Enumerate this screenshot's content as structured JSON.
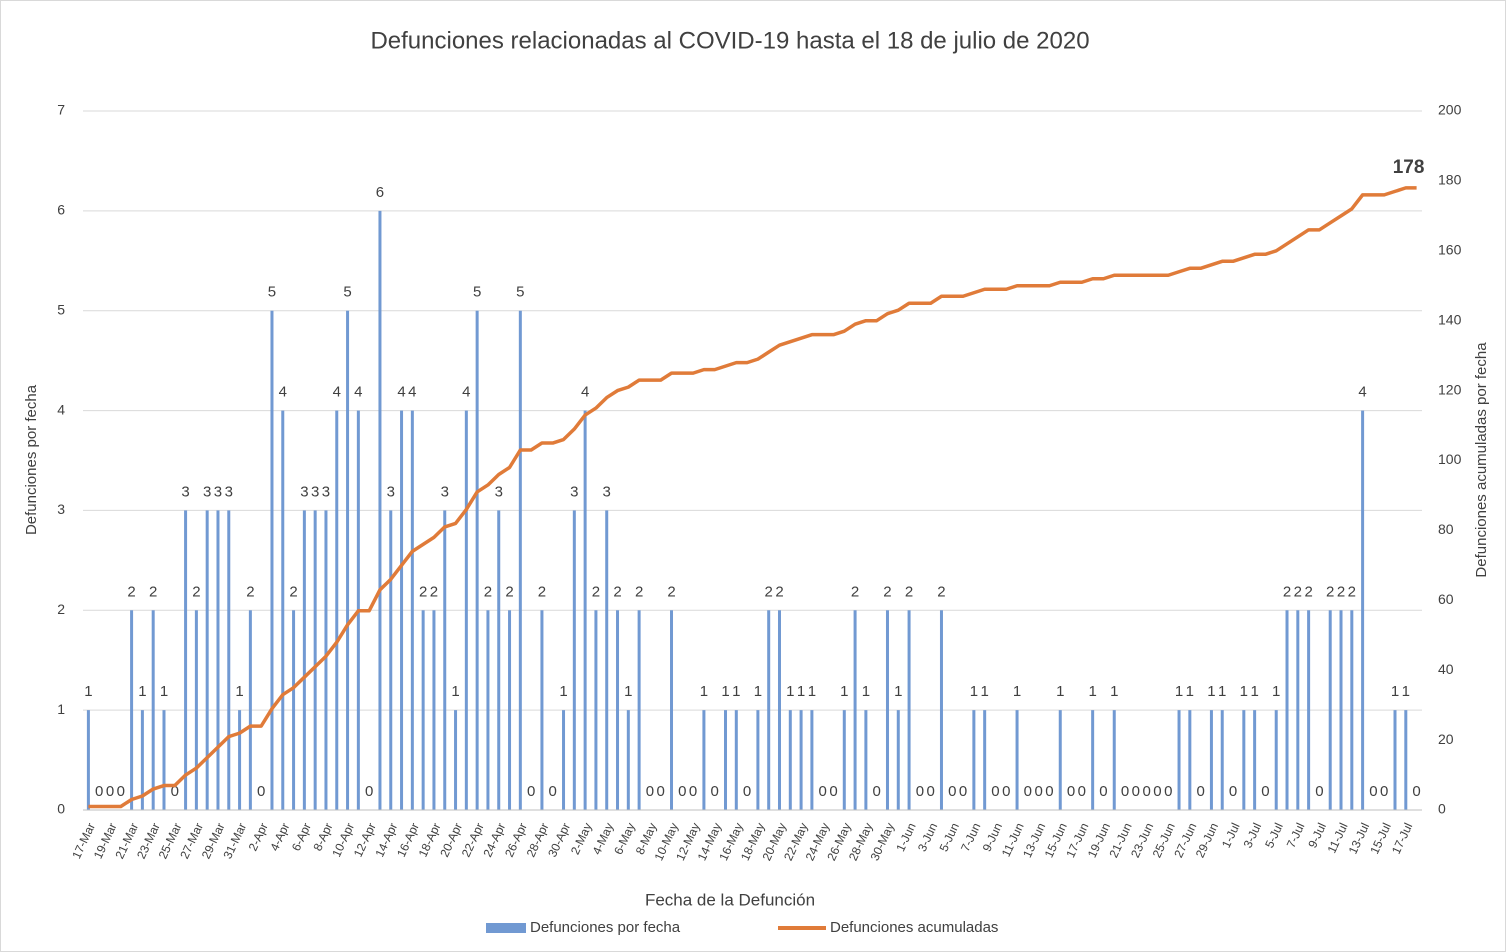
{
  "chart_data": {
    "type": "bar-line",
    "title": "Defunciones relacionadas al COVID-19 hasta el 18 de julio de 2020",
    "xlabel": "Fecha de la Defunción",
    "ylabel": "Defunciones por fecha",
    "y2label": "Defunciones acumuladas por fecha",
    "categories": [
      "17-Mar",
      null,
      "19-Mar",
      null,
      "21-Mar",
      null,
      "23-Mar",
      null,
      "25-Mar",
      null,
      "27-Mar",
      null,
      "29-Mar",
      null,
      "31-Mar",
      null,
      "2-Apr",
      null,
      "4-Apr",
      null,
      "6-Apr",
      null,
      "8-Apr",
      null,
      "10-Apr",
      null,
      "12-Apr",
      null,
      "14-Apr",
      null,
      "16-Apr",
      null,
      "18-Apr",
      null,
      "20-Apr",
      null,
      "22-Apr",
      null,
      "24-Apr",
      null,
      "26-Apr",
      null,
      "28-Apr",
      null,
      "30-Apr",
      null,
      "2-May",
      null,
      "4-May",
      null,
      "6-May",
      null,
      "8-May",
      null,
      "10-May",
      null,
      "12-May",
      null,
      "14-May",
      null,
      "16-May",
      null,
      "18-May",
      null,
      "20-May",
      null,
      "22-May",
      null,
      "24-May",
      null,
      "26-May",
      null,
      "28-May",
      null,
      "30-May",
      null,
      "1-Jun",
      null,
      "3-Jun",
      null,
      "5-Jun",
      null,
      "7-Jun",
      null,
      "9-Jun",
      null,
      "11-Jun",
      null,
      "13-Jun",
      null,
      "15-Jun",
      null,
      "17-Jun",
      null,
      "19-Jun",
      null,
      "21-Jun",
      null,
      "23-Jun",
      null,
      "25-Jun",
      null,
      "27-Jun",
      null,
      "29-Jun",
      null,
      "1-Jul",
      null,
      "3-Jul",
      null,
      "5-Jul",
      null,
      "7-Jul",
      null,
      "9-Jul",
      null,
      "11-Jul",
      null,
      "13-Jul",
      null,
      "15-Jul",
      null,
      "17-Jul",
      null
    ],
    "series": [
      {
        "name": "Defunciones por fecha",
        "color": "#7199d2",
        "type": "bar",
        "axis": "y",
        "values": [
          1,
          0,
          0,
          0,
          2,
          1,
          2,
          1,
          0,
          3,
          2,
          3,
          3,
          3,
          1,
          2,
          0,
          5,
          4,
          2,
          3,
          3,
          3,
          4,
          5,
          4,
          0,
          6,
          3,
          4,
          4,
          2,
          2,
          3,
          1,
          4,
          5,
          2,
          3,
          2,
          5,
          0,
          2,
          0,
          1,
          3,
          4,
          2,
          3,
          2,
          1,
          2,
          0,
          0,
          2,
          0,
          0,
          1,
          0,
          1,
          1,
          0,
          1,
          2,
          2,
          1,
          1,
          1,
          0,
          0,
          1,
          2,
          1,
          0,
          2,
          1,
          2,
          0,
          0,
          2,
          0,
          0,
          1,
          1,
          0,
          0,
          1,
          0,
          0,
          0,
          1,
          0,
          0,
          1,
          0,
          1,
          0,
          0,
          0,
          0,
          0,
          1,
          1,
          0,
          1,
          1,
          0,
          1,
          1,
          0,
          1,
          2,
          2,
          2,
          0,
          2,
          2,
          2,
          4,
          0,
          0,
          1,
          1,
          0
        ]
      },
      {
        "name": "Defunciones acumuladas",
        "color": "#e07b39",
        "type": "line",
        "axis": "y2",
        "values": [
          1,
          1,
          1,
          1,
          3,
          4,
          6,
          7,
          7,
          10,
          12,
          15,
          18,
          21,
          22,
          24,
          24,
          29,
          33,
          35,
          38,
          41,
          44,
          48,
          53,
          57,
          57,
          63,
          66,
          70,
          74,
          76,
          78,
          81,
          82,
          86,
          91,
          93,
          96,
          98,
          103,
          103,
          105,
          105,
          106,
          109,
          113,
          115,
          118,
          120,
          121,
          123,
          123,
          123,
          125,
          125,
          125,
          126,
          126,
          127,
          128,
          128,
          129,
          131,
          133,
          134,
          135,
          136,
          136,
          136,
          137,
          139,
          140,
          140,
          142,
          143,
          145,
          145,
          145,
          147,
          147,
          147,
          148,
          149,
          149,
          149,
          150,
          150,
          150,
          150,
          151,
          151,
          151,
          152,
          152,
          153,
          153,
          153,
          153,
          153,
          153,
          154,
          155,
          155,
          156,
          157,
          157,
          158,
          159,
          159,
          160,
          162,
          164,
          166,
          166,
          168,
          170,
          172,
          176,
          176,
          176,
          177,
          178,
          178
        ]
      }
    ],
    "ylim": [
      0,
      7
    ],
    "yticks": [
      0,
      1,
      2,
      3,
      4,
      5,
      6,
      7
    ],
    "y2lim": [
      0,
      200
    ],
    "y2ticks": [
      0,
      20,
      40,
      60,
      80,
      100,
      120,
      140,
      160,
      180,
      200
    ],
    "legend": "bottom"
  }
}
